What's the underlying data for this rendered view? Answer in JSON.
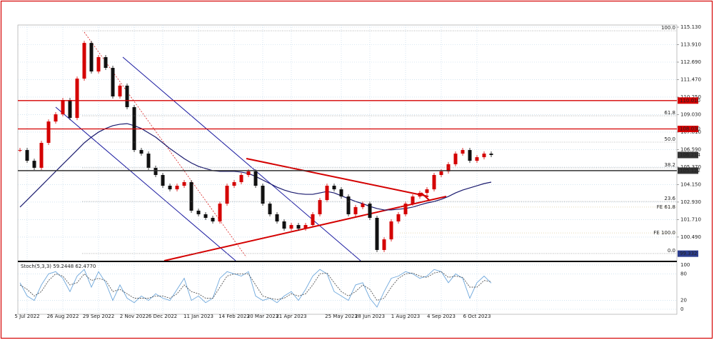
{
  "chart_data": {
    "type": "candlestick",
    "categories": [
      null,
      "5 Jul 2022",
      null,
      null,
      null,
      null,
      "26 Aug 2022",
      null,
      null,
      null,
      null,
      "29 Sep 2022",
      null,
      null,
      null,
      null,
      "2 Nov 2022",
      null,
      null,
      null,
      "6 Dec 2022",
      null,
      null,
      null,
      null,
      "11 Jan 2023",
      null,
      null,
      null,
      null,
      "14 Feb 2023",
      null,
      null,
      null,
      "20 Mar 2023",
      null,
      null,
      null,
      "21 Apr 2023",
      null,
      null,
      null,
      null,
      null,
      null,
      "25 May 2023",
      null,
      null,
      null,
      "28 Jun 2023",
      null,
      null,
      null,
      null,
      "1 Aug 2023",
      null,
      null,
      null,
      null,
      "4 Sep 2023",
      null,
      null,
      null,
      null,
      "6 Oct 2023",
      null,
      null
    ],
    "close": [
      106.56,
      105.81,
      105.32,
      107.06,
      108.55,
      109.05,
      110.05,
      108.8,
      111.54,
      114.03,
      112.04,
      113.04,
      112.29,
      110.3,
      111.05,
      109.55,
      106.56,
      106.31,
      105.32,
      104.82,
      104.07,
      103.82,
      104.07,
      104.32,
      102.33,
      102.08,
      101.83,
      101.58,
      102.82,
      104.07,
      104.32,
      104.82,
      105.07,
      104.07,
      102.82,
      102.08,
      101.58,
      101.08,
      101.33,
      101.08,
      101.33,
      102.08,
      103.07,
      104.07,
      103.82,
      103.32,
      102.08,
      102.58,
      102.82,
      101.83,
      99.59,
      100.33,
      101.58,
      102.08,
      102.82,
      103.32,
      103.57,
      103.82,
      104.82,
      105.07,
      105.57,
      106.31,
      106.56,
      105.81,
      106.06,
      106.31,
      106.214
    ],
    "candle_colors": {
      "up": "#d40000",
      "down": "#111111"
    },
    "ma": {
      "color": "#1a1a6e",
      "values": [
        102.58,
        103.07,
        103.57,
        104.07,
        104.57,
        105.07,
        105.57,
        106.06,
        106.56,
        107.06,
        107.46,
        107.81,
        108.06,
        108.26,
        108.36,
        108.4,
        108.26,
        108.06,
        107.76,
        107.46,
        107.06,
        106.66,
        106.31,
        105.96,
        105.66,
        105.42,
        105.27,
        105.12,
        105.07,
        105.07,
        105.07,
        105.02,
        104.92,
        104.72,
        104.47,
        104.22,
        103.97,
        103.77,
        103.62,
        103.52,
        103.47,
        103.47,
        103.57,
        103.67,
        103.57,
        103.37,
        103.17,
        102.97,
        102.82,
        102.63,
        102.48,
        102.38,
        102.38,
        102.43,
        102.48,
        102.58,
        102.73,
        102.87,
        102.97,
        103.12,
        103.32,
        103.57,
        103.77,
        103.92,
        104.07,
        104.22,
        104.32
      ]
    },
    "ylim": [
      98.99,
      115.28
    ],
    "yticks": [
      {
        "value": 115.13,
        "label": "115.130"
      },
      {
        "value": 113.91,
        "label": "113.910"
      },
      {
        "value": 112.69,
        "label": "112.690"
      },
      {
        "value": 111.47,
        "label": "111.470"
      },
      {
        "value": 110.25,
        "label": "110.250"
      },
      {
        "value": 109.03,
        "label": "109.030"
      },
      {
        "value": 107.81,
        "label": "107.810"
      },
      {
        "value": 106.59,
        "label": "106.590"
      },
      {
        "value": 105.37,
        "label": "105.370"
      },
      {
        "value": 104.15,
        "label": "104.150"
      },
      {
        "value": 102.93,
        "label": "102.930"
      },
      {
        "value": 101.71,
        "label": "101.710"
      },
      {
        "value": 100.49,
        "label": "100.490"
      }
    ],
    "grid": true,
    "levels": [
      {
        "value": 110.01,
        "label": "110.010",
        "color": "#d40000",
        "line": true
      },
      {
        "value": 108.03,
        "label": "108.030",
        "color": "#d40000",
        "line": true
      },
      {
        "value": 106.214,
        "label": "106.214",
        "color": "#333333",
        "line": false
      },
      {
        "value": 105.122,
        "label": "105.122",
        "color": "#333333",
        "line": true
      },
      {
        "value": 99.332,
        "label": "99.332",
        "color": "#2b3d8f",
        "line": false
      }
    ],
    "fib": [
      {
        "label": "100.0",
        "value": 114.88
      },
      {
        "label": "61.8",
        "value": 108.95
      },
      {
        "label": "50.0",
        "value": 107.11
      },
      {
        "label": "38.2",
        "value": 105.32
      },
      {
        "label": "23.6",
        "value": 102.97
      },
      {
        "label": "0.0",
        "value": 99.34
      }
    ],
    "fe": [
      {
        "label": "FE 61.8",
        "value": 102.58
      },
      {
        "label": "FE 100.0",
        "value": 100.78
      }
    ],
    "stoch": {
      "title": "Stoch(5,3,3) 59.2448 62.4770",
      "ylim": [
        0,
        100
      ],
      "yticks": [
        100,
        80,
        20,
        0
      ],
      "series": [
        {
          "color": "#6fa8dc",
          "values": [
            60,
            30,
            20,
            55,
            80,
            85,
            70,
            40,
            75,
            90,
            50,
            85,
            60,
            20,
            55,
            25,
            15,
            30,
            20,
            35,
            25,
            20,
            45,
            70,
            20,
            30,
            15,
            25,
            70,
            85,
            80,
            75,
            85,
            30,
            20,
            25,
            15,
            30,
            40,
            20,
            45,
            75,
            90,
            80,
            40,
            30,
            20,
            55,
            60,
            25,
            5,
            40,
            70,
            75,
            85,
            80,
            70,
            75,
            90,
            85,
            60,
            80,
            70,
            25,
            60,
            75,
            59.2448
          ]
        },
        {
          "color": "#555555",
          "values": [
            55,
            45,
            30,
            40,
            65,
            80,
            75,
            55,
            60,
            80,
            65,
            70,
            65,
            40,
            45,
            35,
            25,
            25,
            25,
            30,
            30,
            25,
            35,
            55,
            40,
            35,
            25,
            25,
            50,
            75,
            80,
            80,
            80,
            55,
            30,
            25,
            22,
            25,
            35,
            30,
            35,
            55,
            80,
            82,
            60,
            40,
            30,
            40,
            55,
            45,
            20,
            25,
            50,
            70,
            80,
            82,
            75,
            72,
            82,
            85,
            72,
            75,
            72,
            50,
            50,
            65,
            62.477
          ]
        }
      ]
    }
  }
}
